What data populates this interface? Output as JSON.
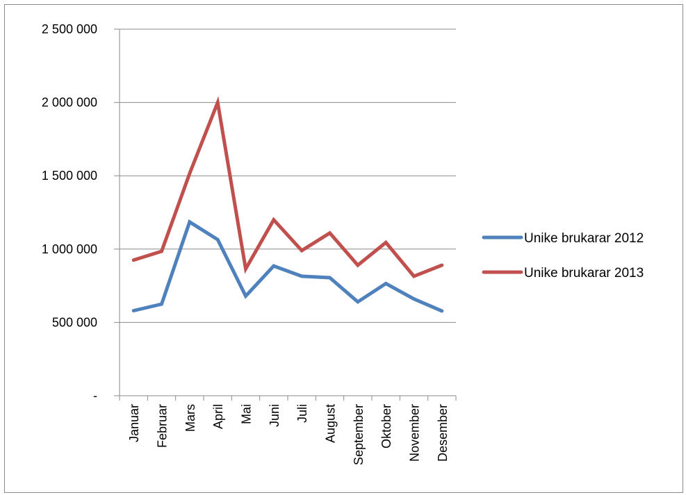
{
  "chart_data": {
    "type": "line",
    "categories": [
      "Januar",
      "Februar",
      "Mars",
      "April",
      "Mai",
      "Juni",
      "Juli",
      "August",
      "September",
      "Oktober",
      "November",
      "Desember"
    ],
    "series": [
      {
        "name": "Unike brukarar 2012",
        "color": "#4f81bd",
        "values": [
          580000,
          625000,
          1185000,
          1065000,
          680000,
          885000,
          815000,
          805000,
          640000,
          765000,
          660000,
          578000
        ]
      },
      {
        "name": "Unike brukarar 2013",
        "color": "#c0504d",
        "values": [
          925000,
          985000,
          1515000,
          2000000,
          865000,
          1200000,
          990000,
          1110000,
          890000,
          1045000,
          815000,
          890000
        ]
      }
    ],
    "ylim": [
      0,
      2500000
    ],
    "yticks": [
      0,
      500000,
      1000000,
      1500000,
      2000000,
      2500000
    ],
    "ytick_labels": [
      "-",
      "500 000",
      "1 000 000",
      "1 500 000",
      "2 000 000",
      "2 500 000"
    ],
    "grid": true,
    "legend": "right"
  }
}
